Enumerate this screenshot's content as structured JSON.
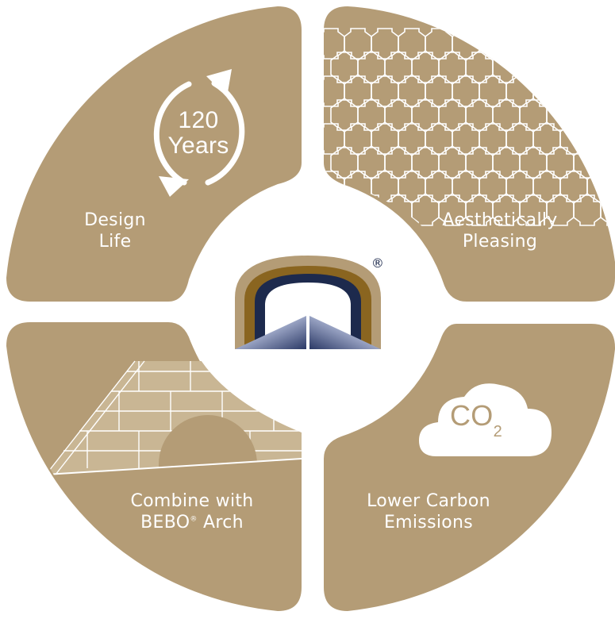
{
  "colors": {
    "tan": "#b49c76",
    "navy": "#1d2a4d",
    "bronze": "#8a6520",
    "white": "#ffffff"
  },
  "quadrants": {
    "top_left": {
      "line1": "Design",
      "line2": "Life",
      "icon": "recycle-arrows-icon",
      "badge_number": "120",
      "badge_unit": "Years"
    },
    "top_right": {
      "line1": "Aesthetically",
      "line2": "Pleasing",
      "icon": "paver-pattern-icon"
    },
    "bottom_left": {
      "line1": "Combine with",
      "line2_prefix": "BEBO",
      "line2_sup": "®",
      "line2_suffix": " Arch",
      "icon": "arch-wall-icon"
    },
    "bottom_right": {
      "line1": "Lower Carbon",
      "line2": "Emissions",
      "icon": "cloud-icon",
      "badge_main": "CO",
      "badge_sub": "2"
    }
  },
  "center": {
    "logo": "tunnel-logo-icon",
    "registered": "®"
  }
}
